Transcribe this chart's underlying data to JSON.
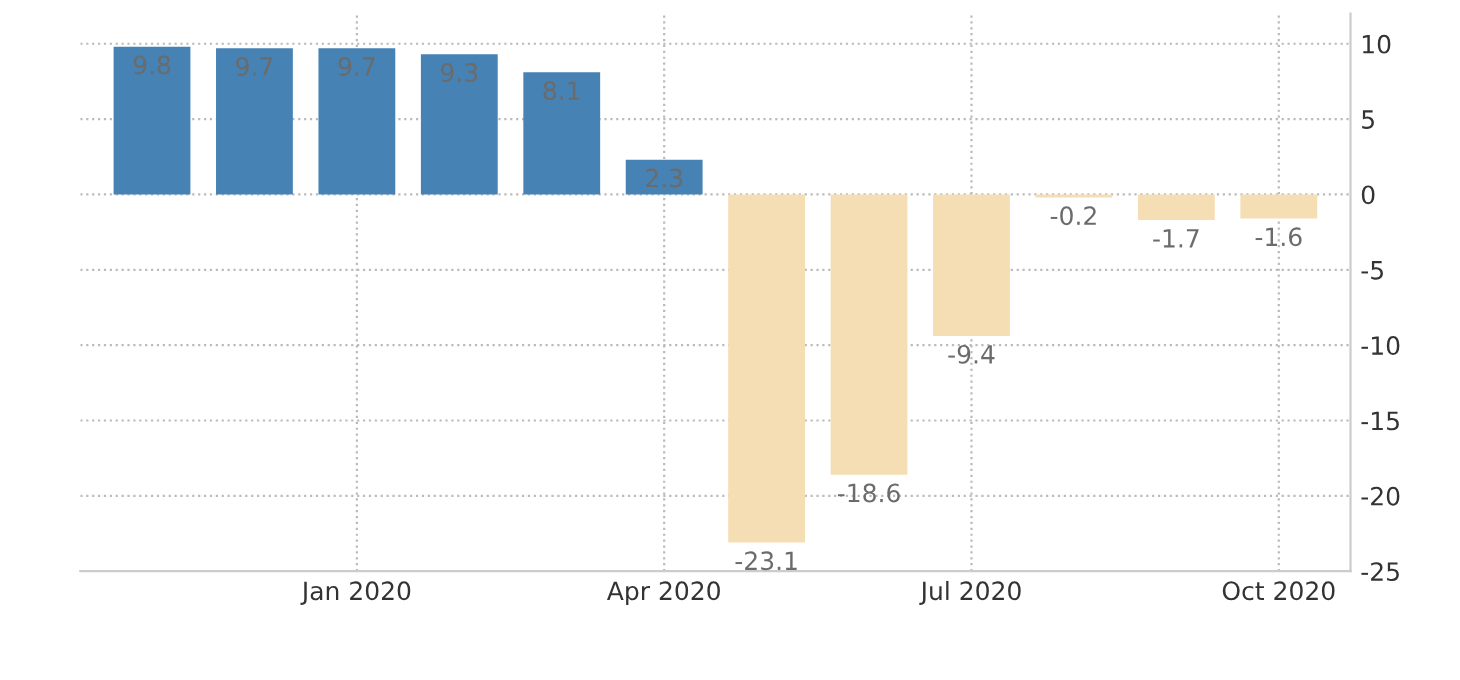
{
  "chart_data": {
    "type": "bar",
    "categories": [
      null,
      null,
      "Jan 2020",
      null,
      null,
      "Apr 2020",
      null,
      null,
      "Jul 2020",
      null,
      null,
      "Oct 2020"
    ],
    "values": [
      9.8,
      9.7,
      9.7,
      9.3,
      8.1,
      2.3,
      -23.1,
      -18.6,
      -9.4,
      -0.2,
      -1.7,
      -1.6
    ],
    "colors": [
      "#4682b4",
      "#4682b4",
      "#4682b4",
      "#4682b4",
      "#4682b4",
      "#4682b4",
      "#f5deb3",
      "#f5deb3",
      "#f5deb3",
      "#f5deb3",
      "#f5deb3",
      "#f5deb3"
    ],
    "ylim": [
      -25,
      12
    ],
    "yticks": [
      -25,
      -20,
      -15,
      -10,
      -5,
      0,
      5,
      10
    ],
    "grid": true,
    "data_labels": true
  }
}
